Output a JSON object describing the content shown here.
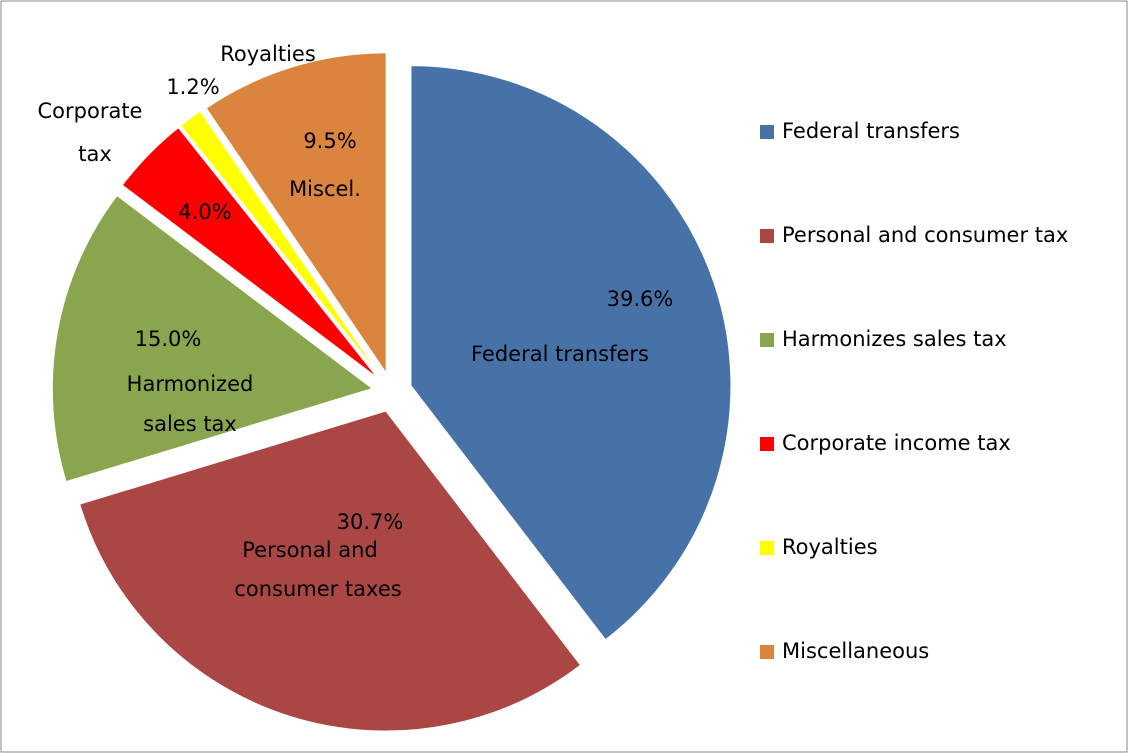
{
  "chart_data": {
    "type": "pie",
    "categories": [
      "Federal transfers",
      "Personal and consumer tax",
      "Harmonizes sales tax",
      "Corporate income tax",
      "Royalties",
      "Miscellaneous"
    ],
    "values": [
      39.6,
      30.7,
      15.0,
      4.0,
      1.2,
      9.5
    ],
    "value_labels": [
      "39.6%",
      "30.7%",
      "15.0%",
      "4.0%",
      "1.2%",
      "9.5%"
    ],
    "slice_labels": [
      [
        "Federal transfers"
      ],
      [
        "Personal and",
        "consumer taxes"
      ],
      [
        "Harmonized",
        "sales tax"
      ],
      [
        "Corporate",
        "tax"
      ],
      [
        "Royalties"
      ],
      [
        "Miscel."
      ]
    ],
    "colors": [
      "#4672a8",
      "#aa4643",
      "#89a54e",
      "#ff0000",
      "#ffff00",
      "#db843d"
    ],
    "legend": "right"
  }
}
